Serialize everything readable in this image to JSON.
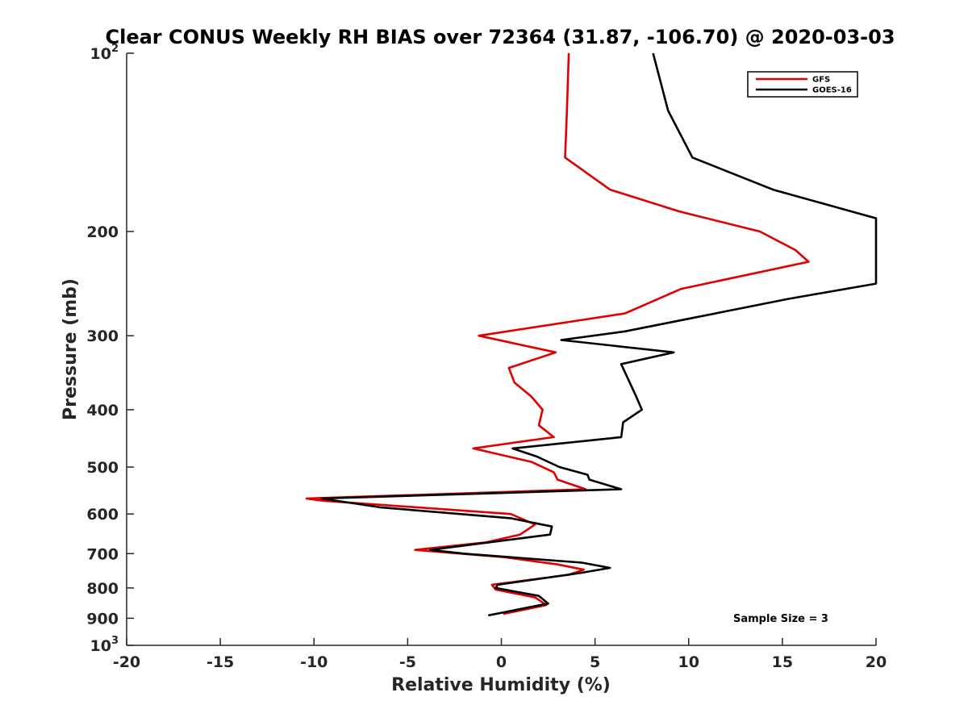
{
  "chart_data": {
    "type": "line",
    "title": "Clear CONUS Weekly RH BIAS over 72364 (31.87, -106.70) @ 2020-03-03",
    "xlabel": "Relative Humidity (%)",
    "ylabel": "Pressure (mb)",
    "xlim": [
      -20,
      20
    ],
    "ylim": [
      100,
      1000
    ],
    "y_scale": "log",
    "y_reversed": true,
    "grid": false,
    "legend_position": "top-right",
    "x_ticks": [
      -20,
      -15,
      -10,
      -5,
      0,
      5,
      10,
      15,
      20
    ],
    "x_tick_labels": [
      "-20",
      "-15",
      "-10",
      "-5",
      "0",
      "5",
      "10",
      "15",
      "20"
    ],
    "y_ticks": [
      100,
      200,
      300,
      400,
      500,
      600,
      700,
      800,
      900,
      1000
    ],
    "y_tick_labels": [
      {
        "base": "10",
        "exp": "2"
      },
      {
        "base": "200"
      },
      {
        "base": "300"
      },
      {
        "base": "400"
      },
      {
        "base": "500"
      },
      {
        "base": "600"
      },
      {
        "base": "700"
      },
      {
        "base": "800"
      },
      {
        "base": "900"
      },
      {
        "base": "10",
        "exp": "3"
      }
    ],
    "annotation": "Sample Size = 3",
    "series": [
      {
        "name": "GFS",
        "color": "#e00000",
        "points": [
          [
            3.6,
            100
          ],
          [
            3.5,
            125
          ],
          [
            3.4,
            150
          ],
          [
            5.8,
            170
          ],
          [
            9.5,
            185
          ],
          [
            13.8,
            200
          ],
          [
            15.7,
            215
          ],
          [
            16.4,
            225
          ],
          [
            9.6,
            250
          ],
          [
            6.6,
            275
          ],
          [
            -1.2,
            300
          ],
          [
            2.9,
            320
          ],
          [
            0.4,
            340
          ],
          [
            0.7,
            360
          ],
          [
            1.6,
            380
          ],
          [
            2.2,
            400
          ],
          [
            2.0,
            425
          ],
          [
            2.8,
            445
          ],
          [
            -1.5,
            465
          ],
          [
            1.6,
            490
          ],
          [
            2.8,
            510
          ],
          [
            3.0,
            525
          ],
          [
            4.5,
            545
          ],
          [
            -10.4,
            565
          ],
          [
            -9.5,
            570
          ],
          [
            0.5,
            600
          ],
          [
            1.8,
            625
          ],
          [
            1.0,
            650
          ],
          [
            -0.8,
            670
          ],
          [
            -4.6,
            690
          ],
          [
            0.2,
            710
          ],
          [
            3.0,
            730
          ],
          [
            4.4,
            745
          ],
          [
            3.6,
            760
          ],
          [
            -0.5,
            790
          ],
          [
            -0.3,
            805
          ],
          [
            1.8,
            830
          ],
          [
            2.4,
            855
          ],
          [
            0.1,
            885
          ]
        ]
      },
      {
        "name": "GOES-16",
        "color": "#000000",
        "points": [
          [
            8.1,
            100
          ],
          [
            8.9,
            125
          ],
          [
            10.2,
            150
          ],
          [
            14.5,
            170
          ],
          [
            20.0,
            190
          ],
          [
            20.0,
            245
          ],
          [
            15.3,
            260
          ],
          [
            10.2,
            280
          ],
          [
            6.6,
            295
          ],
          [
            3.2,
            305
          ],
          [
            9.2,
            320
          ],
          [
            6.4,
            335
          ],
          [
            7.2,
            380
          ],
          [
            7.5,
            400
          ],
          [
            6.5,
            420
          ],
          [
            6.4,
            445
          ],
          [
            0.6,
            465
          ],
          [
            1.9,
            480
          ],
          [
            3.1,
            500
          ],
          [
            4.6,
            515
          ],
          [
            4.7,
            525
          ],
          [
            6.4,
            545
          ],
          [
            -9.6,
            565
          ],
          [
            -6.4,
            585
          ],
          [
            0.5,
            610
          ],
          [
            2.7,
            630
          ],
          [
            2.6,
            650
          ],
          [
            -3.8,
            690
          ],
          [
            -2.0,
            700
          ],
          [
            4.3,
            725
          ],
          [
            5.8,
            740
          ],
          [
            4.2,
            755
          ],
          [
            -0.2,
            790
          ],
          [
            -0.3,
            800
          ],
          [
            2.0,
            825
          ],
          [
            2.5,
            850
          ],
          [
            -0.7,
            890
          ]
        ]
      }
    ]
  }
}
